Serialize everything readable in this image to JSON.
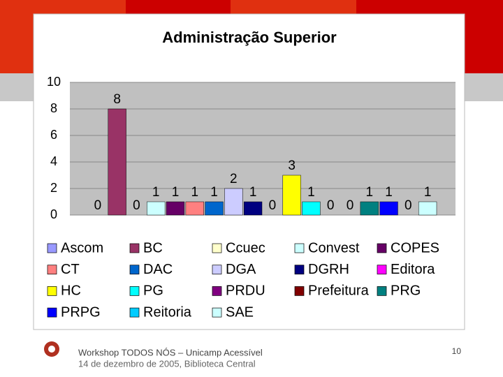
{
  "chart_data": {
    "type": "bar",
    "title": "Administração Superior",
    "categories": [
      null
    ],
    "series": [
      {
        "name": "Ascom",
        "color": "#9999ff",
        "values": [
          0
        ]
      },
      {
        "name": "BC",
        "color": "#993366",
        "values": [
          8
        ]
      },
      {
        "name": "Ccuec",
        "color": "#ffffcc",
        "values": [
          0
        ]
      },
      {
        "name": "Convest",
        "color": "#ccffff",
        "values": [
          1
        ]
      },
      {
        "name": "COPES",
        "color": "#660066",
        "values": [
          1
        ]
      },
      {
        "name": "CT",
        "color": "#ff8080",
        "values": [
          1
        ]
      },
      {
        "name": "DAC",
        "color": "#0066cc",
        "values": [
          1
        ]
      },
      {
        "name": "DGA",
        "color": "#ccccff",
        "values": [
          2
        ]
      },
      {
        "name": "DGRH",
        "color": "#000080",
        "values": [
          1
        ]
      },
      {
        "name": "Editora",
        "color": "#ff00ff",
        "values": [
          0
        ]
      },
      {
        "name": "HC",
        "color": "#ffff00",
        "values": [
          3
        ]
      },
      {
        "name": "PG",
        "color": "#00ffff",
        "values": [
          1
        ]
      },
      {
        "name": "PRDU",
        "color": "#800080",
        "values": [
          0
        ]
      },
      {
        "name": "Prefeitura",
        "color": "#800000",
        "values": [
          0
        ]
      },
      {
        "name": "PRG",
        "color": "#008080",
        "values": [
          1
        ]
      },
      {
        "name": "PRPG",
        "color": "#0000ff",
        "values": [
          1
        ]
      },
      {
        "name": "Reitoria",
        "color": "#00ccff",
        "values": [
          0
        ]
      },
      {
        "name": "SAE",
        "color": "#ccffff",
        "values": [
          1
        ]
      }
    ],
    "ylim": [
      0,
      10
    ],
    "yticks": [
      0,
      2,
      4,
      6,
      8,
      10
    ],
    "grid": true,
    "legend": "bottom"
  },
  "footer": {
    "line1": "Workshop TODOS NÓS – Unicamp Acessível",
    "line2": "14 de dezembro de 2005, Biblioteca Central",
    "page_number": "10"
  }
}
